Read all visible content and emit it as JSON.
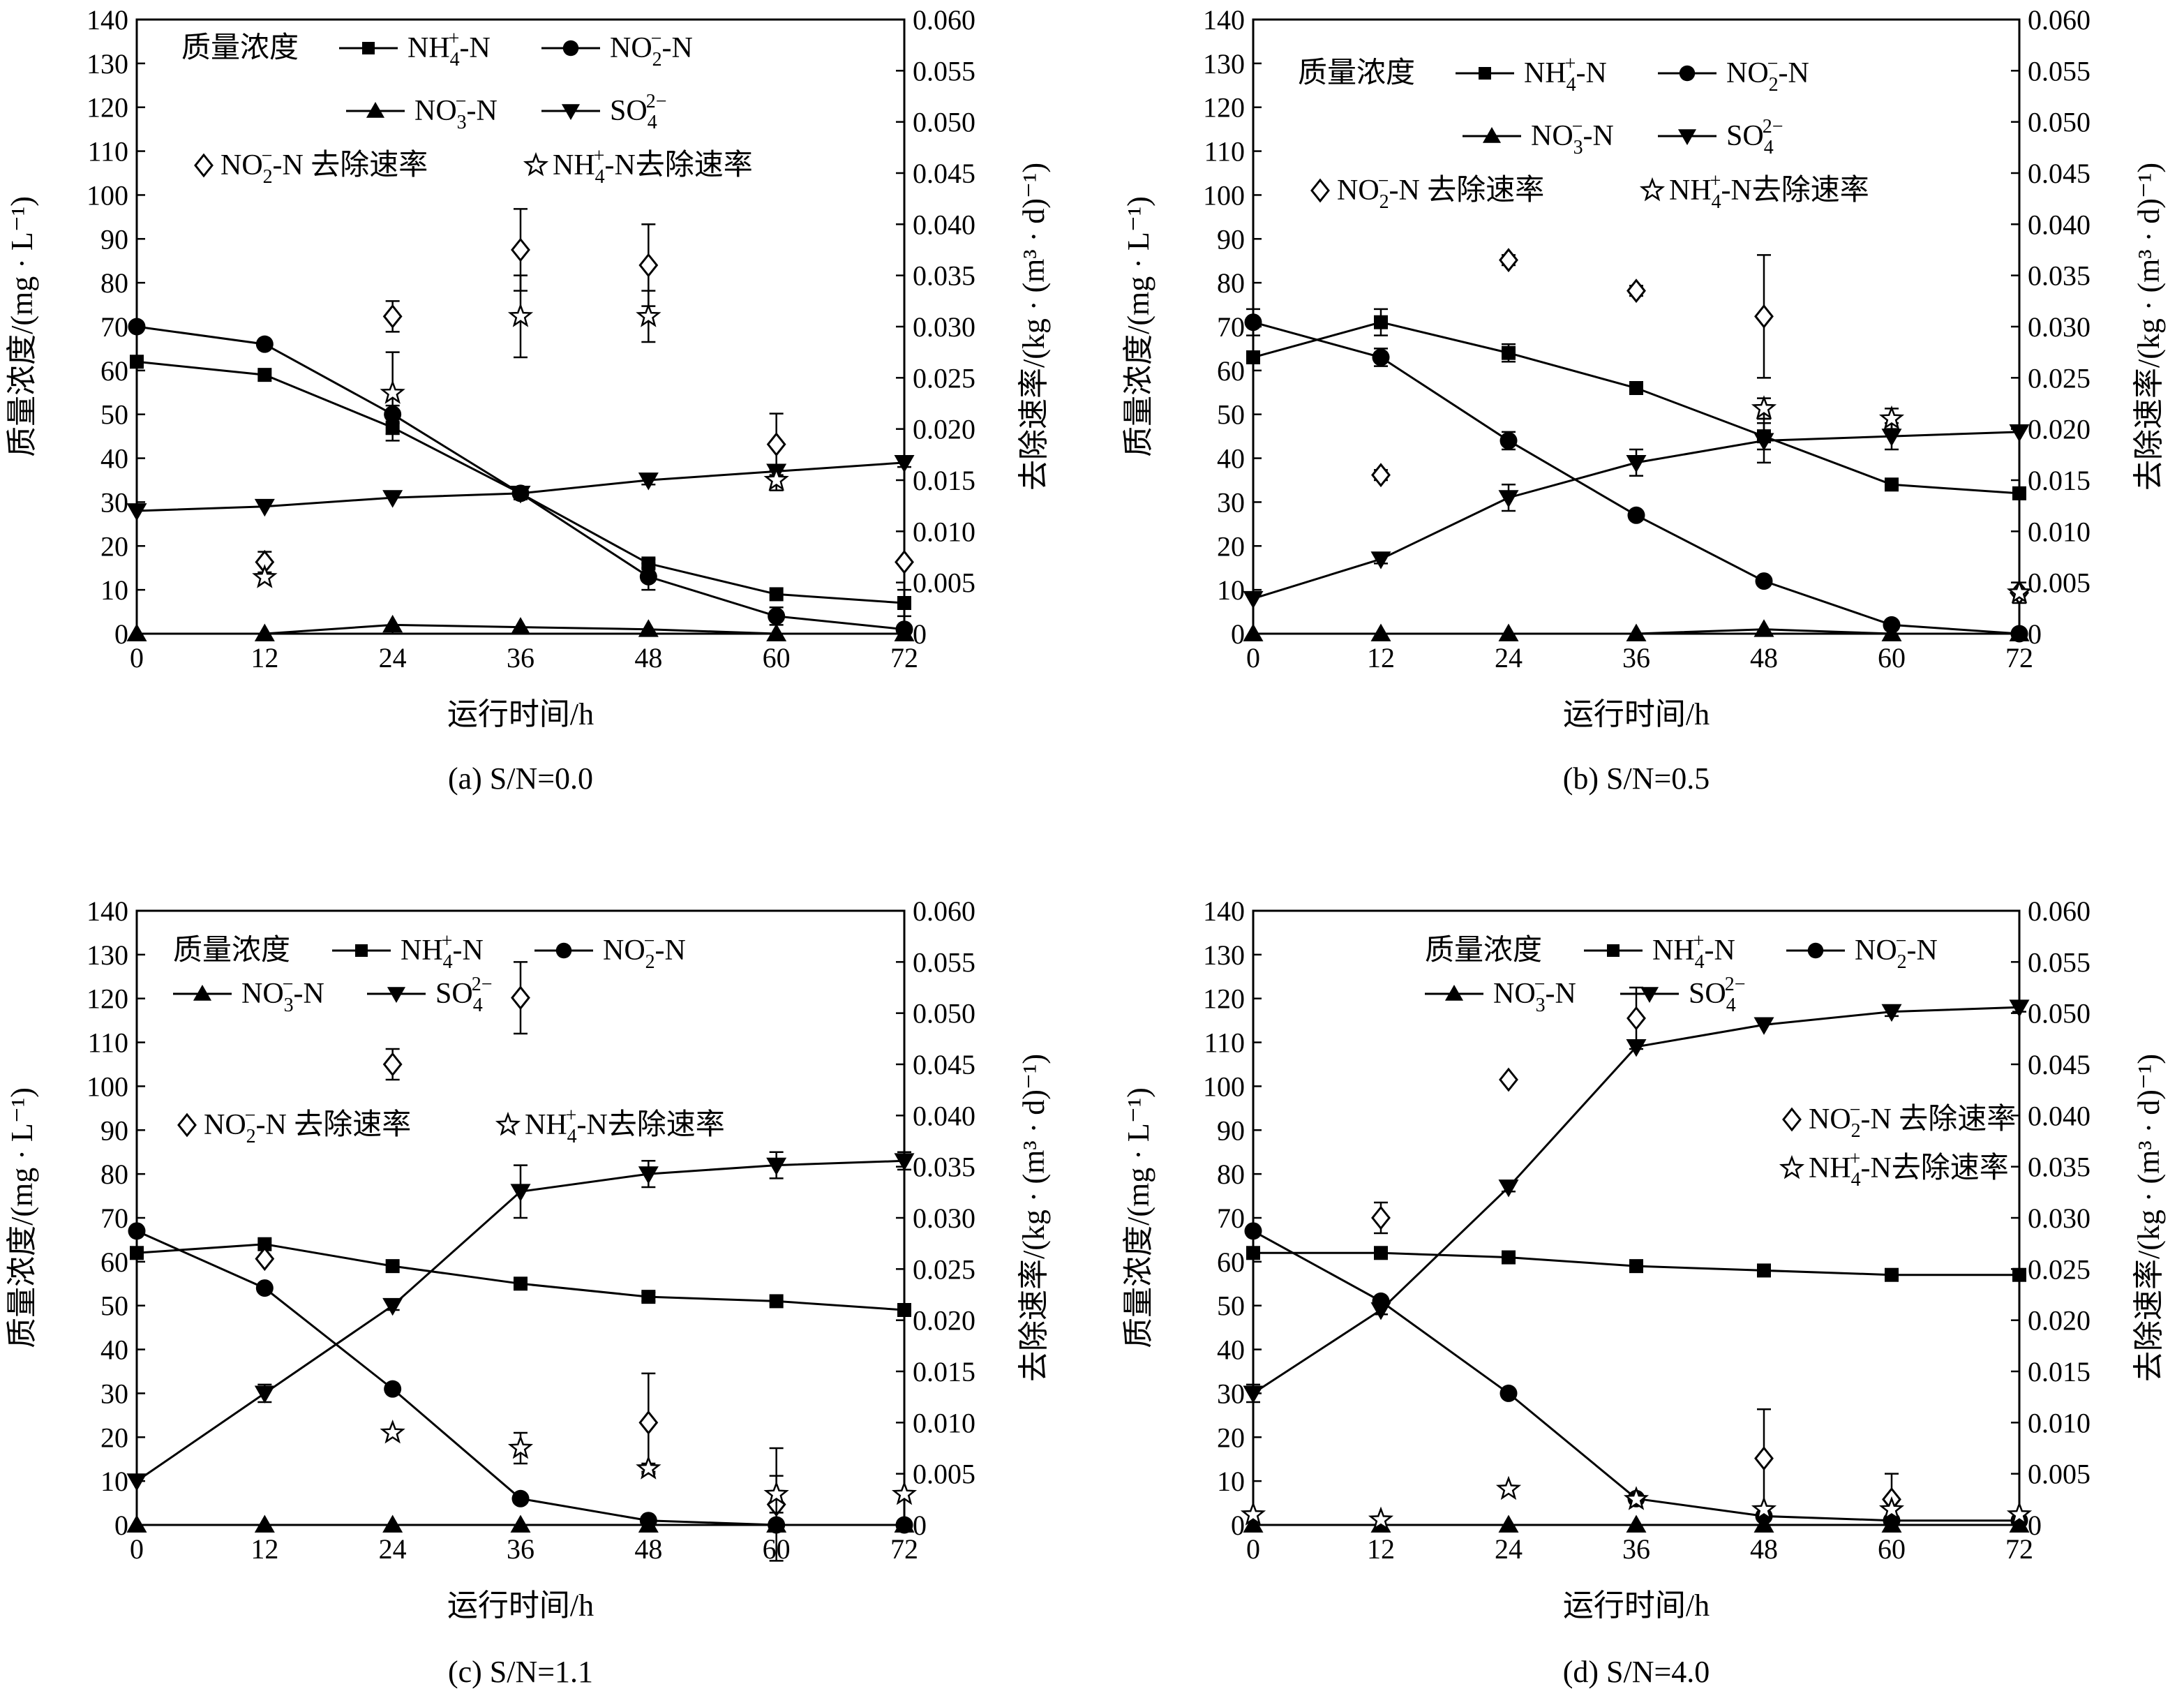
{
  "texts": {
    "x_label": "运行时间/h",
    "y_left_label": "质量浓度/(mg · L⁻¹)",
    "y_right_label": "去除速率/(kg · (m³ · d)⁻¹)",
    "legend_title": "质量浓度"
  },
  "legend": {
    "nh4": {
      "base": "NH",
      "sub": "4",
      "sup": "+",
      "tail": "-N",
      "marker": "square"
    },
    "no2": {
      "base": "NO",
      "sub": "2",
      "sup": "−",
      "tail": "-N",
      "marker": "circle"
    },
    "no3": {
      "base": "NO",
      "sub": "3",
      "sup": "−",
      "tail": "-N",
      "marker": "triangle-up"
    },
    "so4": {
      "base": "SO",
      "sub": "4",
      "sup": "2−",
      "tail": "",
      "marker": "triangle-down"
    },
    "no2_rate": {
      "base": "NO",
      "sub": "2",
      "sup": "−",
      "tail": "-N 去除速率",
      "marker": "diamond-open"
    },
    "nh4_rate": {
      "base": "NH",
      "sub": "4",
      "sup": "+",
      "tail": "-N去除速率",
      "marker": "star-open"
    }
  },
  "chart_data": [
    {
      "type": "line",
      "caption": "(a) S/N=0.0",
      "x": [
        0,
        12,
        24,
        36,
        48,
        60,
        72
      ],
      "xticks": [
        0,
        12,
        24,
        36,
        48,
        60,
        72
      ],
      "xlim": [
        0,
        72
      ],
      "ylim_left": [
        0,
        140
      ],
      "yticks_left": [
        0,
        10,
        20,
        30,
        40,
        50,
        60,
        70,
        80,
        90,
        100,
        110,
        120,
        130,
        140
      ],
      "ylim_right": [
        0,
        0.06
      ],
      "yticks_right": [
        "0",
        "0.005",
        "0.010",
        "0.015",
        "0.020",
        "0.025",
        "0.030",
        "0.035",
        "0.040",
        "0.045",
        "0.050",
        "0.055",
        "0.060"
      ],
      "legend_layout": "standard",
      "series": [
        {
          "key": "nh4",
          "values": [
            62,
            59,
            47,
            32,
            16,
            9,
            7
          ],
          "err": [
            0,
            0,
            3,
            1,
            1,
            0,
            3
          ]
        },
        {
          "key": "no2",
          "values": [
            70,
            66,
            50,
            32,
            13,
            4,
            1
          ],
          "err": [
            0,
            0,
            2,
            1,
            3,
            2,
            1
          ]
        },
        {
          "key": "no3",
          "values": [
            0,
            0,
            2,
            1.5,
            1,
            0,
            0
          ],
          "err": [
            0,
            0,
            0,
            0,
            0,
            0,
            0
          ]
        },
        {
          "key": "so4",
          "values": [
            28,
            29,
            31,
            32,
            35,
            37,
            39
          ],
          "err": [
            0,
            0,
            0,
            0,
            1,
            1,
            1
          ]
        }
      ],
      "rate_series": [
        {
          "key": "no2_rate",
          "x": [
            12,
            24,
            36,
            48,
            60,
            72
          ],
          "values": [
            0.007,
            0.031,
            0.0375,
            0.036,
            0.0185,
            0.007
          ],
          "err": [
            0.001,
            0.0015,
            0.004,
            0.004,
            0.003,
            0
          ]
        },
        {
          "key": "nh4_rate",
          "x": [
            12,
            24,
            36,
            48,
            60
          ],
          "values": [
            0.0055,
            0.0235,
            0.031,
            0.031,
            0.015
          ],
          "err": [
            0,
            0.004,
            0.004,
            0.0025,
            0.001
          ]
        }
      ]
    },
    {
      "type": "line",
      "caption": "(b) S/N=0.5",
      "x": [
        0,
        12,
        24,
        36,
        48,
        60,
        72
      ],
      "xticks": [
        0,
        12,
        24,
        36,
        48,
        60,
        72
      ],
      "xlim": [
        0,
        72
      ],
      "ylim_left": [
        0,
        140
      ],
      "yticks_left": [
        0,
        10,
        20,
        30,
        40,
        50,
        60,
        70,
        80,
        90,
        100,
        110,
        120,
        130,
        140
      ],
      "ylim_right": [
        0,
        0.06
      ],
      "yticks_right": [
        "0",
        "0.005",
        "0.010",
        "0.015",
        "0.020",
        "0.025",
        "0.030",
        "0.035",
        "0.040",
        "0.045",
        "0.050",
        "0.055",
        "0.060"
      ],
      "legend_layout": "standard",
      "series": [
        {
          "key": "nh4",
          "values": [
            63,
            71,
            64,
            56,
            45,
            34,
            32
          ],
          "err": [
            0,
            3,
            2,
            1,
            3,
            1,
            0
          ]
        },
        {
          "key": "no2",
          "values": [
            71,
            63,
            44,
            27,
            12,
            2,
            0
          ],
          "err": [
            3,
            2,
            2,
            1,
            0,
            0,
            0
          ]
        },
        {
          "key": "no3",
          "values": [
            0,
            0,
            0,
            0,
            1,
            0,
            0
          ],
          "err": [
            0,
            0,
            0,
            0,
            0,
            0,
            0
          ]
        },
        {
          "key": "so4",
          "values": [
            8,
            17,
            31,
            39,
            44,
            45,
            46
          ],
          "err": [
            0,
            1,
            3,
            3,
            5,
            3,
            0
          ]
        }
      ],
      "rate_series": [
        {
          "key": "no2_rate",
          "x": [
            12,
            24,
            36,
            48,
            72
          ],
          "values": [
            0.0155,
            0.0365,
            0.0335,
            0.031,
            0.004
          ],
          "err": [
            0.0005,
            0.0005,
            0.0005,
            0.006,
            0.001
          ]
        },
        {
          "key": "nh4_rate",
          "x": [
            48,
            60,
            72
          ],
          "values": [
            0.022,
            0.021,
            0.004
          ],
          "err": [
            0.001,
            0.001,
            0
          ]
        }
      ]
    },
    {
      "type": "line",
      "caption": "(c) S/N=1.1",
      "x": [
        0,
        12,
        24,
        36,
        48,
        60,
        72
      ],
      "xticks": [
        0,
        12,
        24,
        36,
        48,
        60,
        72
      ],
      "xlim": [
        0,
        72
      ],
      "ylim_left": [
        0,
        140
      ],
      "yticks_left": [
        0,
        10,
        20,
        30,
        40,
        50,
        60,
        70,
        80,
        90,
        100,
        110,
        120,
        130,
        140
      ],
      "ylim_right": [
        0,
        0.06
      ],
      "yticks_right": [
        "0",
        "0.005",
        "0.010",
        "0.015",
        "0.020",
        "0.025",
        "0.030",
        "0.035",
        "0.040",
        "0.045",
        "0.050",
        "0.055",
        "0.060"
      ],
      "legend_layout": "split",
      "series": [
        {
          "key": "nh4",
          "values": [
            62,
            64,
            59,
            55,
            52,
            51,
            49
          ],
          "err": [
            0,
            0,
            0,
            1,
            1,
            0,
            0
          ]
        },
        {
          "key": "no2",
          "values": [
            67,
            54,
            31,
            6,
            1,
            0,
            0
          ],
          "err": [
            0,
            0,
            0,
            0,
            0,
            0,
            0
          ]
        },
        {
          "key": "no3",
          "values": [
            0,
            0,
            0,
            0,
            0,
            0,
            0
          ],
          "err": [
            0,
            0,
            0,
            0,
            0,
            0,
            0
          ]
        },
        {
          "key": "so4",
          "values": [
            10,
            30,
            50,
            76,
            80,
            82,
            83
          ],
          "err": [
            0,
            2,
            1,
            6,
            3,
            3,
            2
          ]
        }
      ],
      "rate_series": [
        {
          "key": "no2_rate",
          "x": [
            12,
            24,
            36,
            48,
            60
          ],
          "values": [
            0.026,
            0.045,
            0.0515,
            0.01,
            0.002
          ],
          "err": [
            0,
            0.0015,
            0.0035,
            0.0048,
            0.0055
          ]
        },
        {
          "key": "nh4_rate",
          "x": [
            24,
            36,
            48,
            60,
            72
          ],
          "values": [
            0.009,
            0.0075,
            0.0055,
            0.003,
            0.003
          ],
          "err": [
            0,
            0.0015,
            0.0005,
            0.0018,
            0
          ]
        }
      ]
    },
    {
      "type": "line",
      "caption": "(d) S/N=4.0",
      "x": [
        0,
        12,
        24,
        36,
        48,
        60,
        72
      ],
      "xticks": [
        0,
        12,
        24,
        36,
        48,
        60,
        72
      ],
      "xlim": [
        0,
        72
      ],
      "ylim_left": [
        0,
        140
      ],
      "yticks_left": [
        0,
        10,
        20,
        30,
        40,
        50,
        60,
        70,
        80,
        90,
        100,
        110,
        120,
        130,
        140
      ],
      "ylim_right": [
        0,
        0.06
      ],
      "yticks_right": [
        "0",
        "0.005",
        "0.010",
        "0.015",
        "0.020",
        "0.025",
        "0.030",
        "0.035",
        "0.040",
        "0.045",
        "0.050",
        "0.055",
        "0.060"
      ],
      "legend_layout": "right",
      "series": [
        {
          "key": "nh4",
          "values": [
            62,
            62,
            61,
            59,
            58,
            57,
            57
          ],
          "err": [
            0,
            0,
            0,
            0,
            0,
            0,
            0
          ]
        },
        {
          "key": "no2",
          "values": [
            67,
            51,
            30,
            6,
            2,
            1,
            1
          ],
          "err": [
            0,
            0,
            1,
            0,
            0,
            0,
            0
          ]
        },
        {
          "key": "no3",
          "values": [
            0,
            0,
            0,
            0,
            0,
            0,
            0
          ],
          "err": [
            0,
            0,
            0,
            0,
            0,
            0,
            0
          ]
        },
        {
          "key": "so4",
          "values": [
            30,
            49,
            77,
            109,
            114,
            117,
            118
          ],
          "err": [
            2,
            1,
            1,
            0,
            0,
            1,
            1
          ]
        }
      ],
      "rate_series": [
        {
          "key": "no2_rate",
          "x": [
            12,
            24,
            36,
            48,
            60
          ],
          "values": [
            0.03,
            0.0435,
            0.0495,
            0.0065,
            0.0025
          ],
          "err": [
            0.0015,
            0,
            0.003,
            0.0048,
            0.0025
          ]
        },
        {
          "key": "nh4_rate",
          "x": [
            0,
            12,
            24,
            36,
            48,
            60,
            72
          ],
          "values": [
            0.001,
            0.0005,
            0.0035,
            0.0025,
            0.0015,
            0.0015,
            0.001
          ],
          "err": [
            0,
            0,
            0,
            0,
            0,
            0,
            0
          ]
        }
      ]
    }
  ]
}
